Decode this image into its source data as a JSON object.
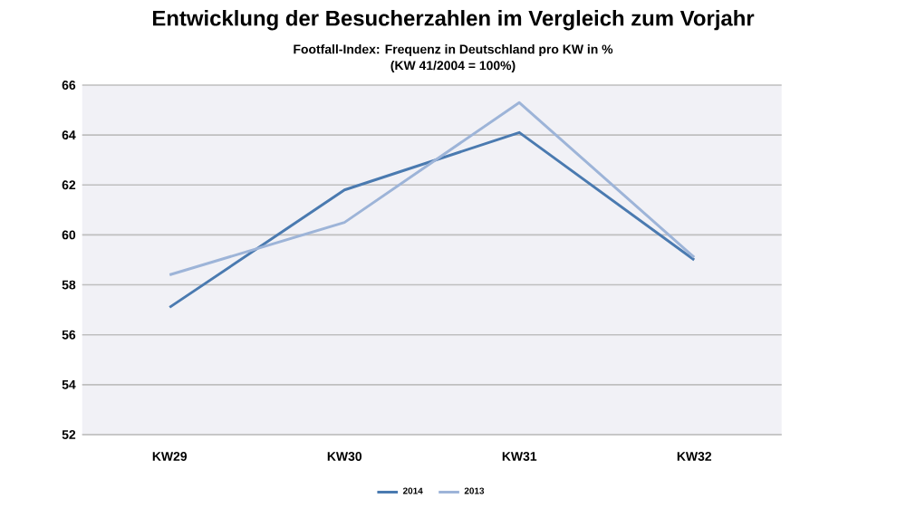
{
  "chart_data": {
    "type": "line",
    "title": "Entwicklung der Besucherzahlen im Vergleich zum Vorjahr",
    "subtitle": "Footfall-Index: Frequenz in Deutschland pro KW in %\n(KW 41/2004 = 100%)",
    "categories": [
      "KW29",
      "KW30",
      "KW31",
      "KW32"
    ],
    "series": [
      {
        "name": "2014",
        "color": "#4a7ab0",
        "values": [
          57.1,
          61.8,
          64.1,
          59.0
        ]
      },
      {
        "name": "2013",
        "color": "#9db4d8",
        "values": [
          58.4,
          60.5,
          65.3,
          59.1
        ]
      }
    ],
    "ylim": [
      52,
      66
    ],
    "yticks": [
      52,
      54,
      56,
      58,
      60,
      62,
      64,
      66
    ],
    "grid": "y",
    "legend": "bottom",
    "marker": "none",
    "line_style": "solid"
  }
}
